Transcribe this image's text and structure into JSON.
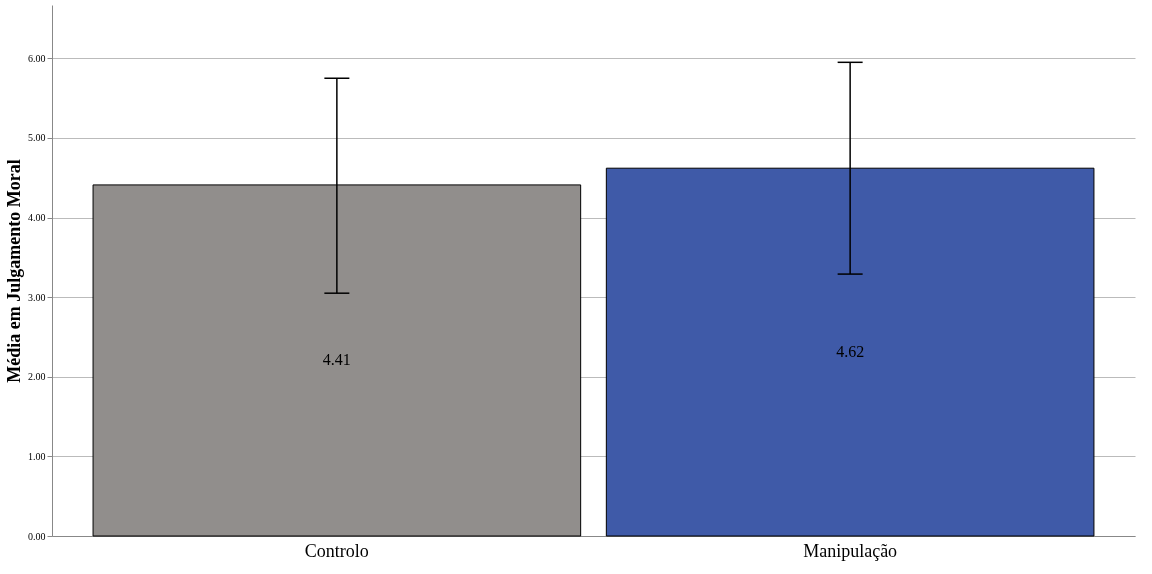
{
  "chart_data": {
    "type": "bar",
    "ylabel": "Média em Julgamento Moral",
    "categories": [
      "Controlo",
      "Manipulação"
    ],
    "values": [
      4.41,
      4.62
    ],
    "colors": [
      "#918e8c",
      "#3f5aa8"
    ],
    "errors": [
      [
        3.05,
        5.75
      ],
      [
        3.29,
        5.95
      ]
    ],
    "data_labels": true,
    "ylim": [
      0,
      6.67
    ],
    "yticks": [
      {
        "value": 0,
        "label": "0.00"
      },
      {
        "value": 1,
        "label": "1.00"
      },
      {
        "value": 2,
        "label": "2.00"
      },
      {
        "value": 3,
        "label": "3.00"
      },
      {
        "value": 4,
        "label": "4.00"
      },
      {
        "value": 5,
        "label": "5.00"
      },
      {
        "value": 6,
        "label": "6.00"
      }
    ],
    "grid": "y"
  }
}
